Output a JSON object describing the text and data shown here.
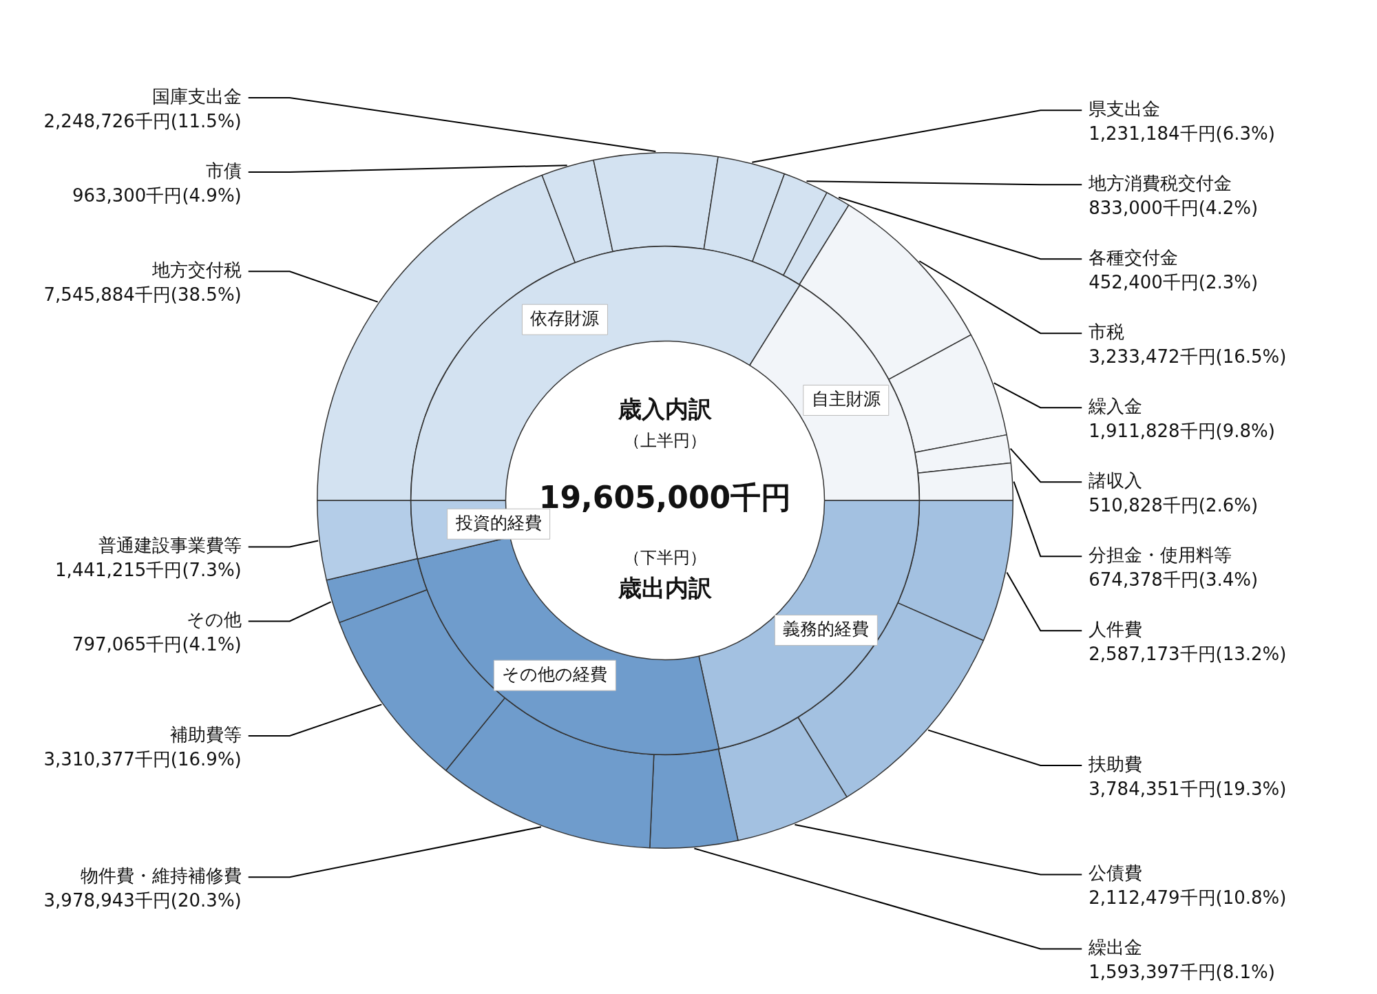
{
  "chart_data": [
    {
      "type": "donut",
      "legend": false,
      "categories": [
        "地方交付税",
        "市債",
        "国庫支出金",
        "県支出金",
        "地方消費税交付金",
        "各種交付金",
        "市税",
        "繰入金",
        "諸収入",
        "分担金・使用料等",
        "人件費",
        "扶助費",
        "公債費",
        "繰出金",
        "物件費・維持補修費",
        "補助費等",
        "その他",
        "普通建設事業費等"
      ],
      "values": [
        7545884,
        963300,
        2248726,
        1231184,
        833000,
        452400,
        3233472,
        1911828,
        510828,
        674378,
        2587173,
        3784351,
        2112479,
        1593397,
        3978943,
        3310377,
        797065,
        1441215
      ],
      "colors": [
        "#d3e2f1",
        "#d3e2f1",
        "#d3e2f1",
        "#d3e2f1",
        "#d3e2f1",
        "#d3e2f1",
        "#f2f5f9",
        "#f2f5f9",
        "#f2f5f9",
        "#f2f5f9",
        "#a3c1e1",
        "#a3c1e1",
        "#a3c1e1",
        "#6f9ccc",
        "#6f9ccc",
        "#6f9ccc",
        "#6f9ccc",
        "#b4cde8"
      ],
      "value_labels": [
        "7,545,884千円(38.5%)",
        "963,300千円(4.9%)",
        "2,248,726千円(11.5%)",
        "1,231,184千円(6.3%)",
        "833,000千円(4.2%)",
        "452,400千円(2.3%)",
        "3,233,472千円(16.5%)",
        "1,911,828千円(9.8%)",
        "510,828千円(2.6%)",
        "674,378千円(3.4%)",
        "2,587,173千円(13.2%)",
        "3,784,351千円(19.3%)",
        "2,112,479千円(10.8%)",
        "1,593,397千円(8.1%)",
        "3,978,943千円(20.3%)",
        "3,310,377千円(16.9%)",
        "797,065千円(4.1%)",
        "1,441,215千円(7.3%)"
      ],
      "annotations": [
        "歳入内訳",
        "（上半円）",
        "19,605,000千円",
        "（下半円）",
        "歳出内訳"
      ]
    },
    {
      "type": "donut",
      "legend": false,
      "categories": [
        "依存財源",
        "自主財源",
        "義務的経費",
        "その他の経費",
        "投資的経費"
      ],
      "values": [
        33.9,
        16.1,
        21.6,
        24.7,
        3.7
      ],
      "colors": [
        "#d3e2f1",
        "#f2f5f9",
        "#a3c1e1",
        "#6f9ccc",
        "#b4cde8"
      ]
    }
  ]
}
